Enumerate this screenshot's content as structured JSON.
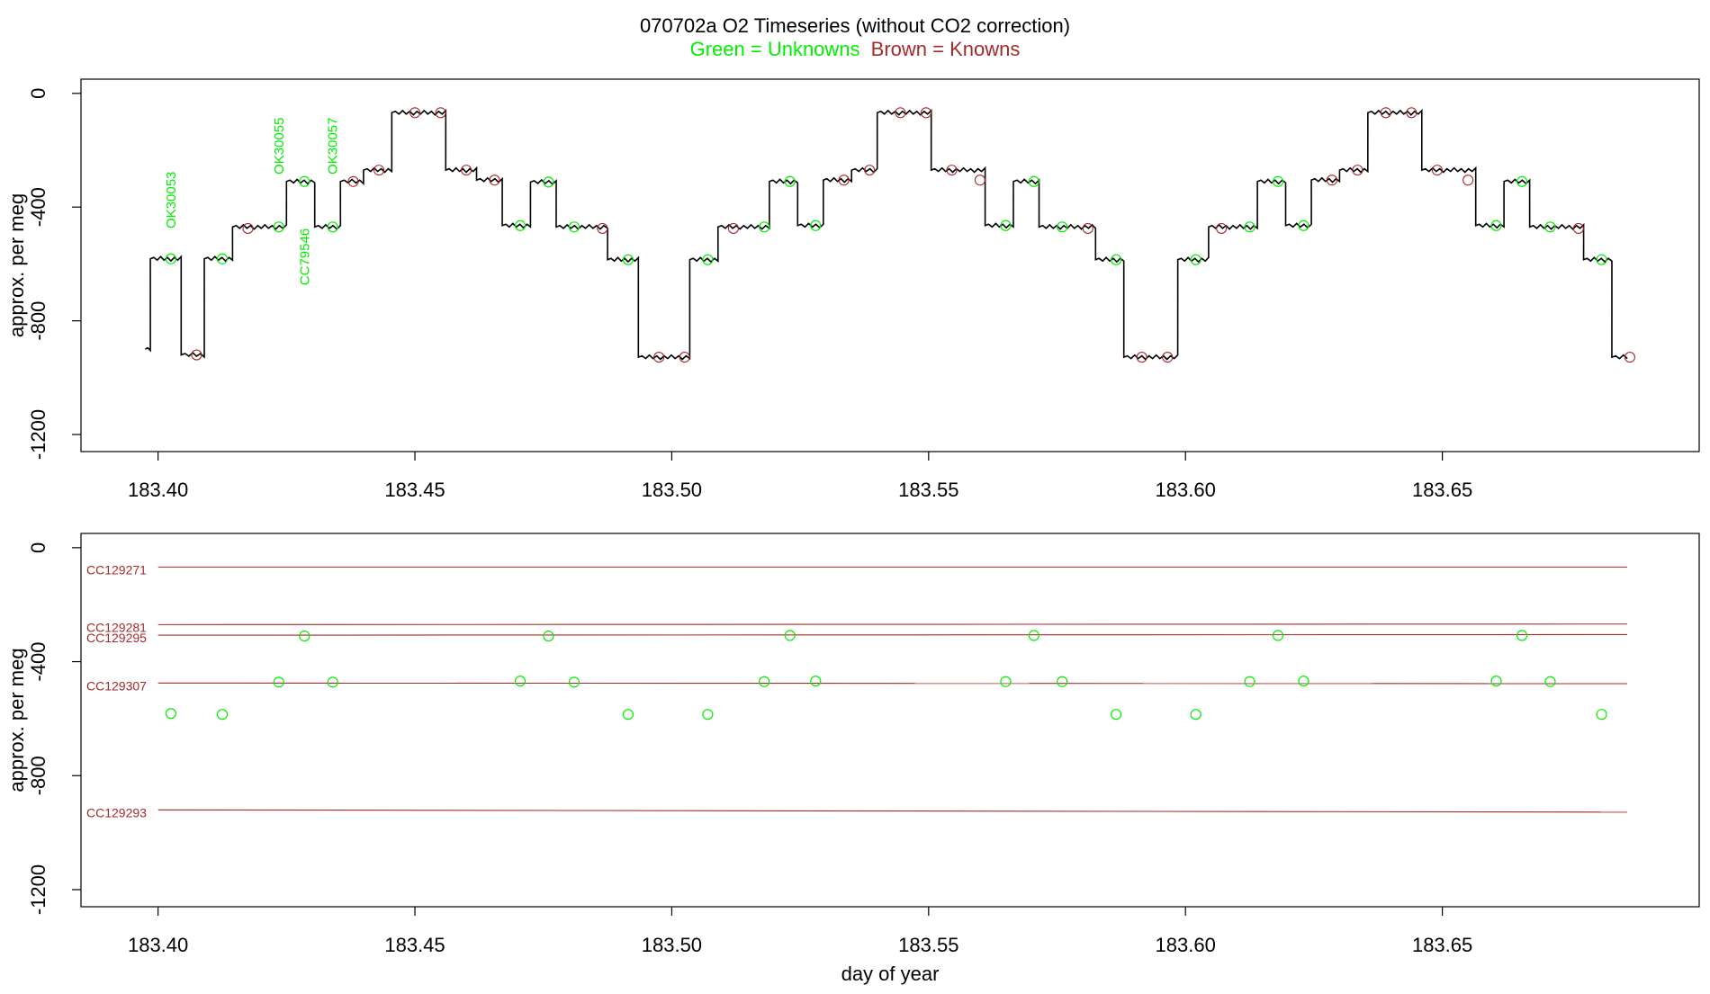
{
  "title": {
    "main": "070702a   O2 Timeseries (without CO2 correction)",
    "subtitle_unknowns": "Green = Unknowns",
    "subtitle_knowns": "Brown = Knowns"
  },
  "colors": {
    "unknown": "#00ee00",
    "known": "#a52a2a",
    "trace": "#000000",
    "axis": "#000000"
  },
  "chart_data": [
    {
      "type": "line",
      "name": "top-panel",
      "xlim": [
        183.385,
        183.7
      ],
      "ylim": [
        -1260,
        50
      ],
      "ylabel": "approx. per meg",
      "xlabel": "",
      "x_ticks": [
        "183.40",
        "183.45",
        "183.50",
        "183.55",
        "183.60",
        "183.65"
      ],
      "x_tick_values": [
        183.4,
        183.45,
        183.5,
        183.55,
        183.6,
        183.65
      ],
      "y_ticks": [
        "0",
        "-400",
        "-800",
        "-1200"
      ],
      "y_tick_values": [
        0,
        -400,
        -800,
        -1200
      ],
      "trace_segments": [
        {
          "x0": 183.3975,
          "x1": 183.3985,
          "y": -900
        },
        {
          "x0": 183.3985,
          "x1": 183.4045,
          "y": -582
        },
        {
          "x0": 183.4045,
          "x1": 183.409,
          "y": -920
        },
        {
          "x0": 183.409,
          "x1": 183.4145,
          "y": -582
        },
        {
          "x0": 183.4145,
          "x1": 183.425,
          "y": -470
        },
        {
          "x0": 183.425,
          "x1": 183.4305,
          "y": -310
        },
        {
          "x0": 183.4305,
          "x1": 183.4355,
          "y": -470
        },
        {
          "x0": 183.4355,
          "x1": 183.44,
          "y": -310
        },
        {
          "x0": 183.44,
          "x1": 183.4455,
          "y": -270
        },
        {
          "x0": 183.4455,
          "x1": 183.456,
          "y": -68
        },
        {
          "x0": 183.456,
          "x1": 183.462,
          "y": -270
        },
        {
          "x0": 183.462,
          "x1": 183.467,
          "y": -305
        },
        {
          "x0": 183.467,
          "x1": 183.4725,
          "y": -465
        },
        {
          "x0": 183.4725,
          "x1": 183.4775,
          "y": -312
        },
        {
          "x0": 183.4775,
          "x1": 183.4875,
          "y": -470
        },
        {
          "x0": 183.4875,
          "x1": 183.4935,
          "y": -585
        },
        {
          "x0": 183.4935,
          "x1": 183.5035,
          "y": -928
        },
        {
          "x0": 183.5035,
          "x1": 183.509,
          "y": -585
        },
        {
          "x0": 183.509,
          "x1": 183.519,
          "y": -470
        },
        {
          "x0": 183.519,
          "x1": 183.5245,
          "y": -310
        },
        {
          "x0": 183.5245,
          "x1": 183.5295,
          "y": -465
        },
        {
          "x0": 183.5295,
          "x1": 183.535,
          "y": -305
        },
        {
          "x0": 183.535,
          "x1": 183.54,
          "y": -270
        },
        {
          "x0": 183.54,
          "x1": 183.5505,
          "y": -68
        },
        {
          "x0": 183.5505,
          "x1": 183.561,
          "y": -270
        },
        {
          "x0": 183.561,
          "x1": 183.5665,
          "y": -465
        },
        {
          "x0": 183.5665,
          "x1": 183.5715,
          "y": -310
        },
        {
          "x0": 183.5715,
          "x1": 183.5825,
          "y": -470
        },
        {
          "x0": 183.5825,
          "x1": 183.588,
          "y": -585
        },
        {
          "x0": 183.588,
          "x1": 183.5985,
          "y": -928
        },
        {
          "x0": 183.5985,
          "x1": 183.6045,
          "y": -585
        },
        {
          "x0": 183.6045,
          "x1": 183.614,
          "y": -470
        },
        {
          "x0": 183.614,
          "x1": 183.6195,
          "y": -310
        },
        {
          "x0": 183.6195,
          "x1": 183.6245,
          "y": -465
        },
        {
          "x0": 183.6245,
          "x1": 183.63,
          "y": -305
        },
        {
          "x0": 183.63,
          "x1": 183.6355,
          "y": -270
        },
        {
          "x0": 183.6355,
          "x1": 183.646,
          "y": -68
        },
        {
          "x0": 183.646,
          "x1": 183.6565,
          "y": -270
        },
        {
          "x0": 183.6565,
          "x1": 183.662,
          "y": -465
        },
        {
          "x0": 183.662,
          "x1": 183.667,
          "y": -310
        },
        {
          "x0": 183.667,
          "x1": 183.6775,
          "y": -470
        },
        {
          "x0": 183.6775,
          "x1": 183.683,
          "y": -585
        },
        {
          "x0": 183.683,
          "x1": 183.686,
          "y": -928
        }
      ],
      "known_points": [
        {
          "x": 183.4075,
          "y": -920
        },
        {
          "x": 183.4175,
          "y": -475
        },
        {
          "x": 183.438,
          "y": -310
        },
        {
          "x": 183.443,
          "y": -270
        },
        {
          "x": 183.45,
          "y": -68
        },
        {
          "x": 183.455,
          "y": -68
        },
        {
          "x": 183.46,
          "y": -270
        },
        {
          "x": 183.4655,
          "y": -305
        },
        {
          "x": 183.4865,
          "y": -475
        },
        {
          "x": 183.4975,
          "y": -928
        },
        {
          "x": 183.5025,
          "y": -928
        },
        {
          "x": 183.512,
          "y": -475
        },
        {
          "x": 183.5335,
          "y": -305
        },
        {
          "x": 183.5385,
          "y": -270
        },
        {
          "x": 183.5445,
          "y": -68
        },
        {
          "x": 183.5495,
          "y": -68
        },
        {
          "x": 183.5545,
          "y": -270
        },
        {
          "x": 183.56,
          "y": -305
        },
        {
          "x": 183.581,
          "y": -475
        },
        {
          "x": 183.5915,
          "y": -928
        },
        {
          "x": 183.5965,
          "y": -928
        },
        {
          "x": 183.607,
          "y": -475
        },
        {
          "x": 183.6285,
          "y": -305
        },
        {
          "x": 183.6335,
          "y": -270
        },
        {
          "x": 183.639,
          "y": -68
        },
        {
          "x": 183.644,
          "y": -68
        },
        {
          "x": 183.649,
          "y": -270
        },
        {
          "x": 183.655,
          "y": -305
        },
        {
          "x": 183.6765,
          "y": -475
        },
        {
          "x": 183.6865,
          "y": -928
        }
      ],
      "unknown_points": [
        {
          "x": 183.4025,
          "y": -582
        },
        {
          "x": 183.4125,
          "y": -582
        },
        {
          "x": 183.4235,
          "y": -470
        },
        {
          "x": 183.4285,
          "y": -310
        },
        {
          "x": 183.434,
          "y": -470
        },
        {
          "x": 183.4705,
          "y": -465
        },
        {
          "x": 183.476,
          "y": -312
        },
        {
          "x": 183.481,
          "y": -470
        },
        {
          "x": 183.4915,
          "y": -585
        },
        {
          "x": 183.507,
          "y": -585
        },
        {
          "x": 183.518,
          "y": -470
        },
        {
          "x": 183.523,
          "y": -310
        },
        {
          "x": 183.528,
          "y": -465
        },
        {
          "x": 183.565,
          "y": -465
        },
        {
          "x": 183.5705,
          "y": -310
        },
        {
          "x": 183.576,
          "y": -470
        },
        {
          "x": 183.5865,
          "y": -585
        },
        {
          "x": 183.602,
          "y": -585
        },
        {
          "x": 183.6125,
          "y": -470
        },
        {
          "x": 183.618,
          "y": -310
        },
        {
          "x": 183.623,
          "y": -465
        },
        {
          "x": 183.6605,
          "y": -465
        },
        {
          "x": 183.6655,
          "y": -310
        },
        {
          "x": 183.671,
          "y": -470
        },
        {
          "x": 183.681,
          "y": -585
        }
      ],
      "annotations": [
        {
          "text": "OK30053",
          "x": 183.4025,
          "y": -375
        },
        {
          "text": "OK30055",
          "x": 183.4235,
          "y": -185
        },
        {
          "text": "CC79546",
          "x": 183.4285,
          "y": -575
        },
        {
          "text": "OK30057",
          "x": 183.434,
          "y": -185
        }
      ]
    },
    {
      "type": "scatter",
      "name": "bottom-panel",
      "xlim": [
        183.385,
        183.7
      ],
      "ylim": [
        -1260,
        50
      ],
      "ylabel": "approx. per meg",
      "xlabel": "day of year",
      "x_ticks": [
        "183.40",
        "183.45",
        "183.50",
        "183.55",
        "183.60",
        "183.65"
      ],
      "x_tick_values": [
        183.4,
        183.45,
        183.5,
        183.55,
        183.6,
        183.65
      ],
      "y_ticks": [
        "0",
        "-400",
        "-800",
        "-1200"
      ],
      "y_tick_values": [
        0,
        -400,
        -800,
        -1200
      ],
      "known_lines": [
        {
          "name": "CC129271",
          "x0": 183.4,
          "x1": 183.686,
          "y0": -68,
          "y1": -68
        },
        {
          "name": "CC129281",
          "x0": 183.4,
          "x1": 183.686,
          "y0": -270,
          "y1": -268
        },
        {
          "name": "CC129295",
          "x0": 183.4,
          "x1": 183.686,
          "y0": -307,
          "y1": -305
        },
        {
          "name": "CC129307",
          "x0": 183.4,
          "x1": 183.686,
          "y0": -475,
          "y1": -477
        },
        {
          "name": "CC129293",
          "x0": 183.4,
          "x1": 183.686,
          "y0": -920,
          "y1": -928
        }
      ],
      "unknown_points": [
        {
          "x": 183.4025,
          "y": -582
        },
        {
          "x": 183.4125,
          "y": -585
        },
        {
          "x": 183.4235,
          "y": -472
        },
        {
          "x": 183.4285,
          "y": -310
        },
        {
          "x": 183.434,
          "y": -472
        },
        {
          "x": 183.4705,
          "y": -468
        },
        {
          "x": 183.476,
          "y": -310
        },
        {
          "x": 183.481,
          "y": -472
        },
        {
          "x": 183.4915,
          "y": -585
        },
        {
          "x": 183.507,
          "y": -585
        },
        {
          "x": 183.518,
          "y": -470
        },
        {
          "x": 183.523,
          "y": -308
        },
        {
          "x": 183.528,
          "y": -468
        },
        {
          "x": 183.565,
          "y": -470
        },
        {
          "x": 183.5705,
          "y": -308
        },
        {
          "x": 183.576,
          "y": -470
        },
        {
          "x": 183.5865,
          "y": -585
        },
        {
          "x": 183.602,
          "y": -585
        },
        {
          "x": 183.6125,
          "y": -470
        },
        {
          "x": 183.618,
          "y": -308
        },
        {
          "x": 183.623,
          "y": -468
        },
        {
          "x": 183.6605,
          "y": -468
        },
        {
          "x": 183.6655,
          "y": -308
        },
        {
          "x": 183.671,
          "y": -470
        },
        {
          "x": 183.681,
          "y": -585
        }
      ]
    }
  ]
}
